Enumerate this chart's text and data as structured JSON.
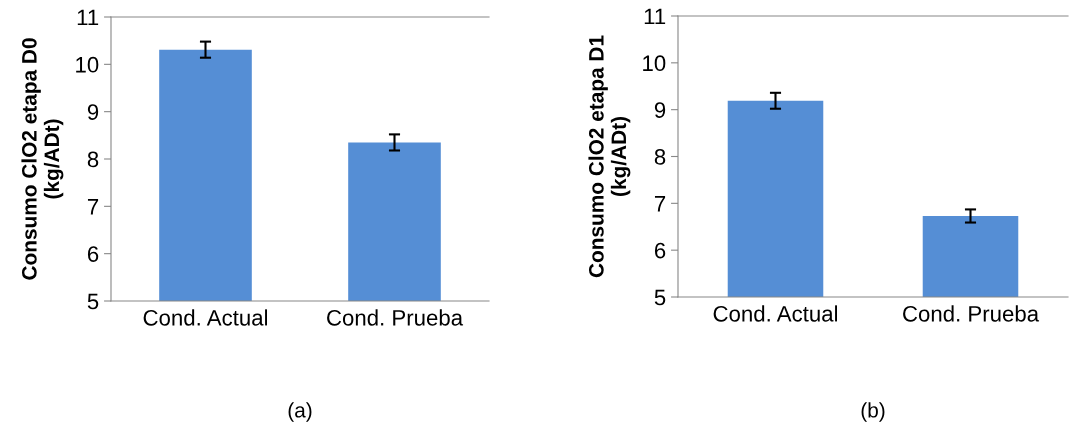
{
  "chart_data": [
    {
      "type": "bar",
      "categories": [
        "Cond. Actual",
        "Cond. Prueba"
      ],
      "values": [
        10.31,
        8.35
      ],
      "errors": [
        0.17,
        0.17
      ],
      "color": "#558ed5",
      "ylabel": "Consumo ClO2 etapa D0\n(kg/ADt)",
      "ylim": [
        5,
        11
      ],
      "yticks": [
        5,
        6,
        7,
        8,
        9,
        10,
        11
      ],
      "grid": false,
      "annotations": [
        "(a)"
      ]
    },
    {
      "type": "bar",
      "categories": [
        "Cond. Actual",
        "Cond. Prueba"
      ],
      "values": [
        9.19,
        6.73
      ],
      "errors": [
        0.17,
        0.14
      ],
      "color": "#558ed5",
      "ylabel": "Consumo ClO2 etapa D1\n(kg/ADt)",
      "ylim": [
        5,
        11
      ],
      "yticks": [
        5,
        6,
        7,
        8,
        9,
        10,
        11
      ],
      "grid": false,
      "annotations": [
        "(b)"
      ]
    }
  ]
}
